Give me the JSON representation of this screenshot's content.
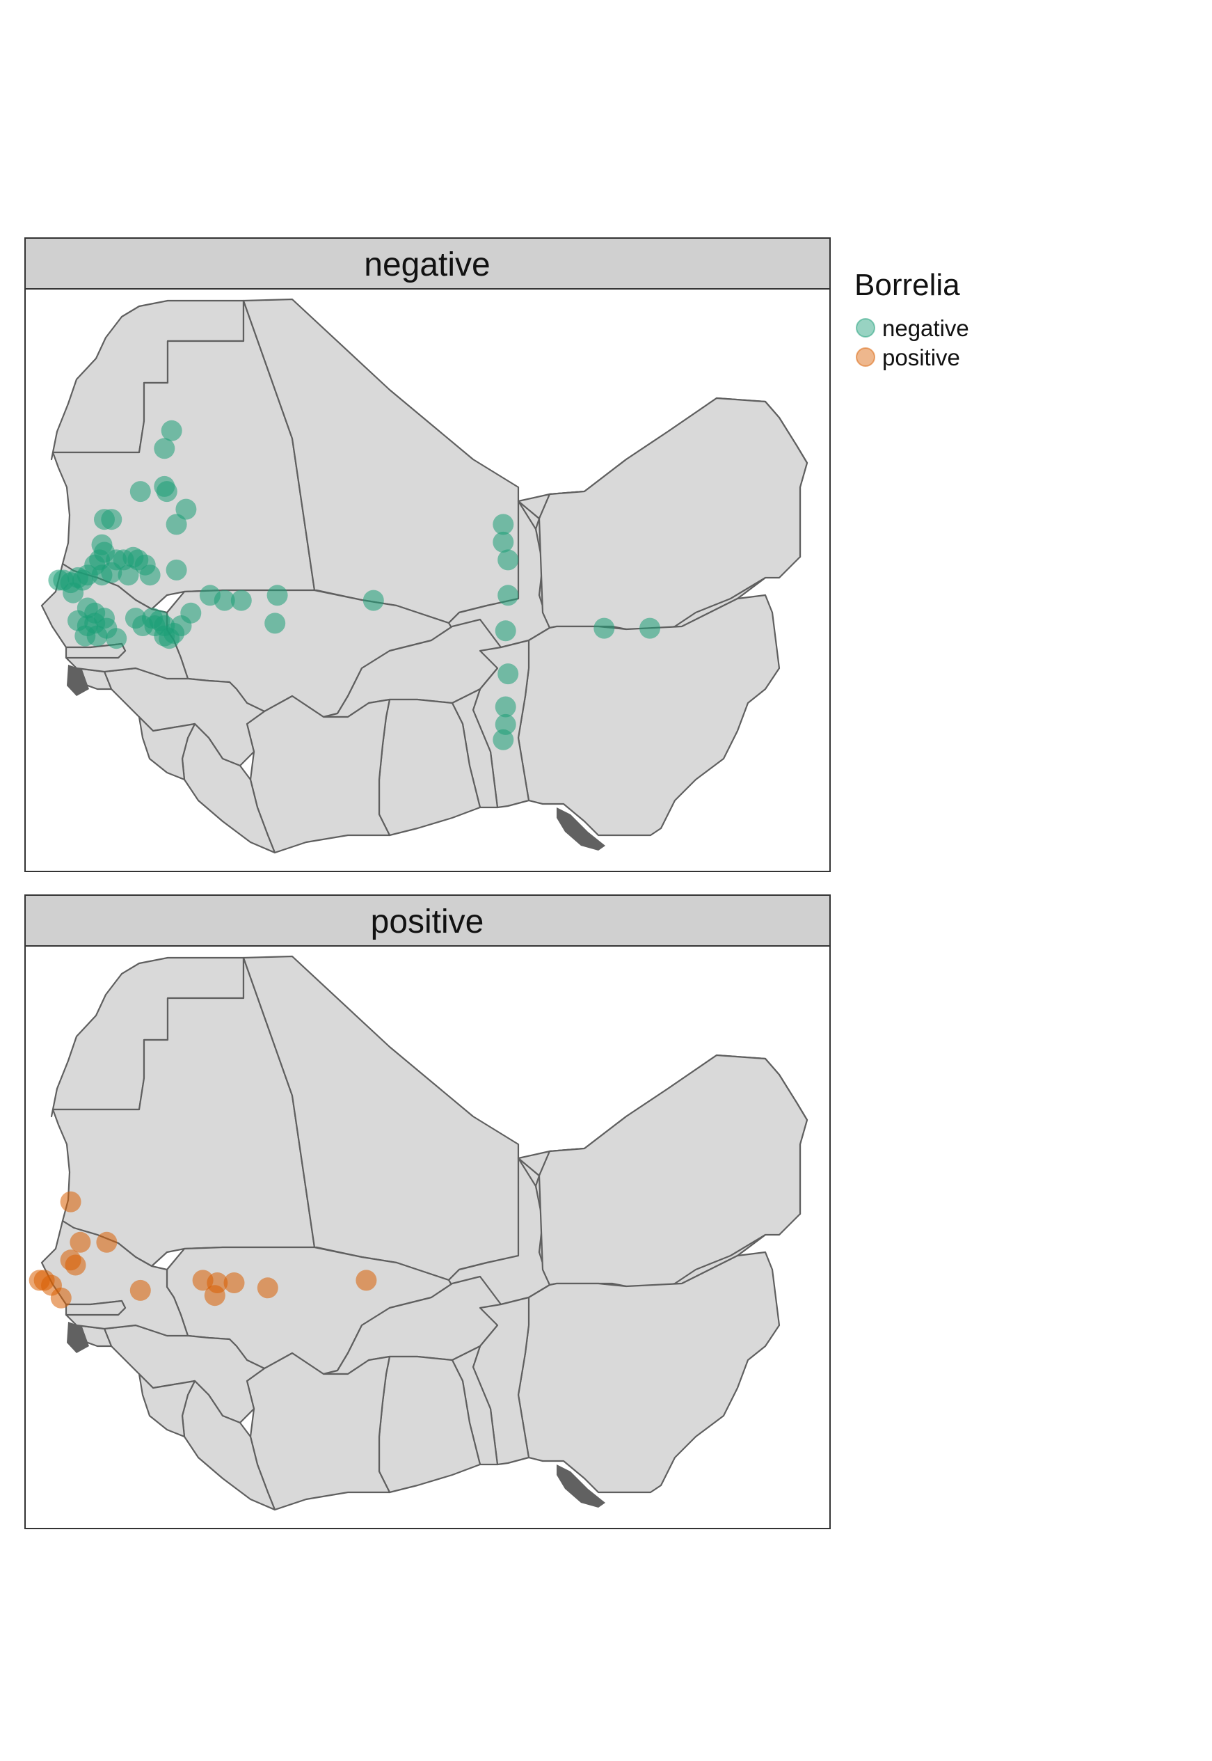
{
  "colors": {
    "negative": "#1b9e77",
    "positive": "#d95f02",
    "land": "#d9d9d9",
    "border": "#5f5f5f",
    "strip": "#d0d0d0"
  },
  "legend": {
    "title": "Borrelia",
    "items": [
      {
        "key": "negative",
        "label": "negative"
      },
      {
        "key": "positive",
        "label": "positive"
      }
    ]
  },
  "panels": [
    {
      "key": "negative",
      "title": "negative"
    },
    {
      "key": "positive",
      "title": "positive"
    }
  ],
  "chart_data": {
    "type": "scatter",
    "variable": "Borrelia",
    "facets": [
      "negative",
      "positive"
    ],
    "facet_by": "Borrelia",
    "note_units": "longitude (deg E, negative = W), latitude (deg N)",
    "series": [
      {
        "name": "negative",
        "points": [
          [
            -11.4,
            21.7
          ],
          [
            -11.7,
            21.0
          ],
          [
            -12.7,
            19.3
          ],
          [
            -11.7,
            19.5
          ],
          [
            -11.6,
            19.3
          ],
          [
            -10.8,
            18.6
          ],
          [
            -11.2,
            18.0
          ],
          [
            -13.9,
            18.2
          ],
          [
            -14.2,
            18.2
          ],
          [
            -14.3,
            17.2
          ],
          [
            -14.2,
            16.9
          ],
          [
            -13.0,
            16.7
          ],
          [
            -12.8,
            16.6
          ],
          [
            -12.5,
            16.4
          ],
          [
            -13.7,
            16.6
          ],
          [
            -13.4,
            16.6
          ],
          [
            -14.4,
            16.6
          ],
          [
            -14.6,
            16.4
          ],
          [
            -14.9,
            16.0
          ],
          [
            -15.3,
            15.9
          ],
          [
            -15.1,
            15.8
          ],
          [
            -14.3,
            16.0
          ],
          [
            -13.9,
            16.1
          ],
          [
            -13.2,
            16.0
          ],
          [
            -12.3,
            16.0
          ],
          [
            -11.2,
            16.2
          ],
          [
            -15.6,
            15.7
          ],
          [
            -15.9,
            15.8
          ],
          [
            -16.1,
            15.8
          ],
          [
            -15.5,
            15.3
          ],
          [
            -14.9,
            14.7
          ],
          [
            -14.6,
            14.5
          ],
          [
            -14.2,
            14.3
          ],
          [
            -14.6,
            14.1
          ],
          [
            -14.9,
            14.0
          ],
          [
            -15.3,
            14.2
          ],
          [
            -15.0,
            13.6
          ],
          [
            -14.5,
            13.6
          ],
          [
            -13.7,
            13.5
          ],
          [
            -14.1,
            13.9
          ],
          [
            -12.2,
            14.3
          ],
          [
            -12.1,
            14.0
          ],
          [
            -11.9,
            14.2
          ],
          [
            -11.7,
            14.0
          ],
          [
            -11.3,
            13.7
          ],
          [
            -11.7,
            13.6
          ],
          [
            -12.6,
            14.0
          ],
          [
            -12.9,
            14.3
          ],
          [
            -11.0,
            14.0
          ],
          [
            -11.5,
            13.5
          ],
          [
            -10.6,
            14.5
          ],
          [
            -9.8,
            15.2
          ],
          [
            -9.2,
            15.0
          ],
          [
            -8.5,
            15.0
          ],
          [
            -7.0,
            15.2
          ],
          [
            -7.1,
            14.1
          ],
          [
            -3.0,
            15.0
          ],
          [
            2.4,
            18.0
          ],
          [
            2.4,
            17.3
          ],
          [
            2.6,
            16.6
          ],
          [
            2.6,
            15.2
          ],
          [
            2.5,
            13.8
          ],
          [
            2.6,
            12.1
          ],
          [
            2.5,
            10.8
          ],
          [
            2.5,
            10.1
          ],
          [
            2.4,
            9.5
          ],
          [
            6.6,
            13.9
          ],
          [
            8.5,
            13.9
          ]
        ]
      },
      {
        "name": "positive",
        "points": [
          [
            -15.6,
            17.2
          ],
          [
            -15.2,
            15.6
          ],
          [
            -14.1,
            15.6
          ],
          [
            -15.6,
            14.9
          ],
          [
            -15.4,
            14.7
          ],
          [
            -16.9,
            14.1
          ],
          [
            -16.7,
            14.1
          ],
          [
            -16.4,
            13.9
          ],
          [
            -16.0,
            13.4
          ],
          [
            -12.7,
            13.7
          ],
          [
            -10.1,
            14.1
          ],
          [
            -9.5,
            14.0
          ],
          [
            -8.8,
            14.0
          ],
          [
            -9.6,
            13.5
          ],
          [
            -7.4,
            13.8
          ],
          [
            -3.3,
            14.1
          ]
        ]
      }
    ],
    "xlim": [
      -17.5,
      16.0
    ],
    "ylim": [
      4.3,
      27.3
    ]
  }
}
